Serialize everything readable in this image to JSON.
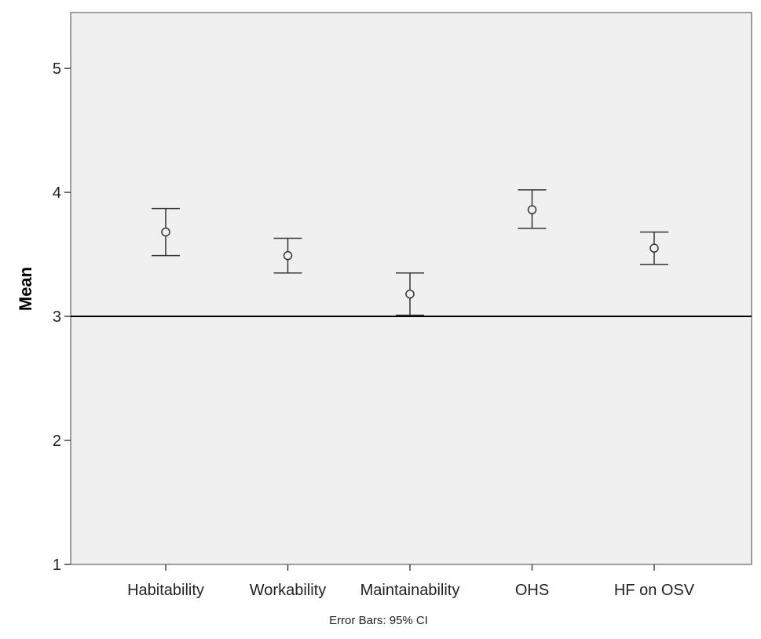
{
  "chart_data": {
    "type": "scatter",
    "subtype": "error-bar",
    "title": "",
    "xlabel": "",
    "ylabel": "Mean",
    "ylim": [
      1,
      5.45
    ],
    "yticks": [
      "1",
      "2",
      "3",
      "4",
      "5"
    ],
    "categories": [
      "Habitability",
      "Workability",
      "Maintainability",
      "OHS",
      "HF on OSV"
    ],
    "means": [
      3.68,
      3.49,
      3.18,
      3.86,
      3.55
    ],
    "ci_lower": [
      3.49,
      3.35,
      3.01,
      3.71,
      3.42
    ],
    "ci_upper": [
      3.87,
      3.63,
      3.35,
      4.02,
      3.68
    ],
    "reference_line": 3,
    "grid": false,
    "footnote": "Error Bars: 95% CI",
    "colors": {
      "plot_background": "#f0f0f0",
      "marks": "#333333",
      "reference_line": "#000000"
    }
  }
}
